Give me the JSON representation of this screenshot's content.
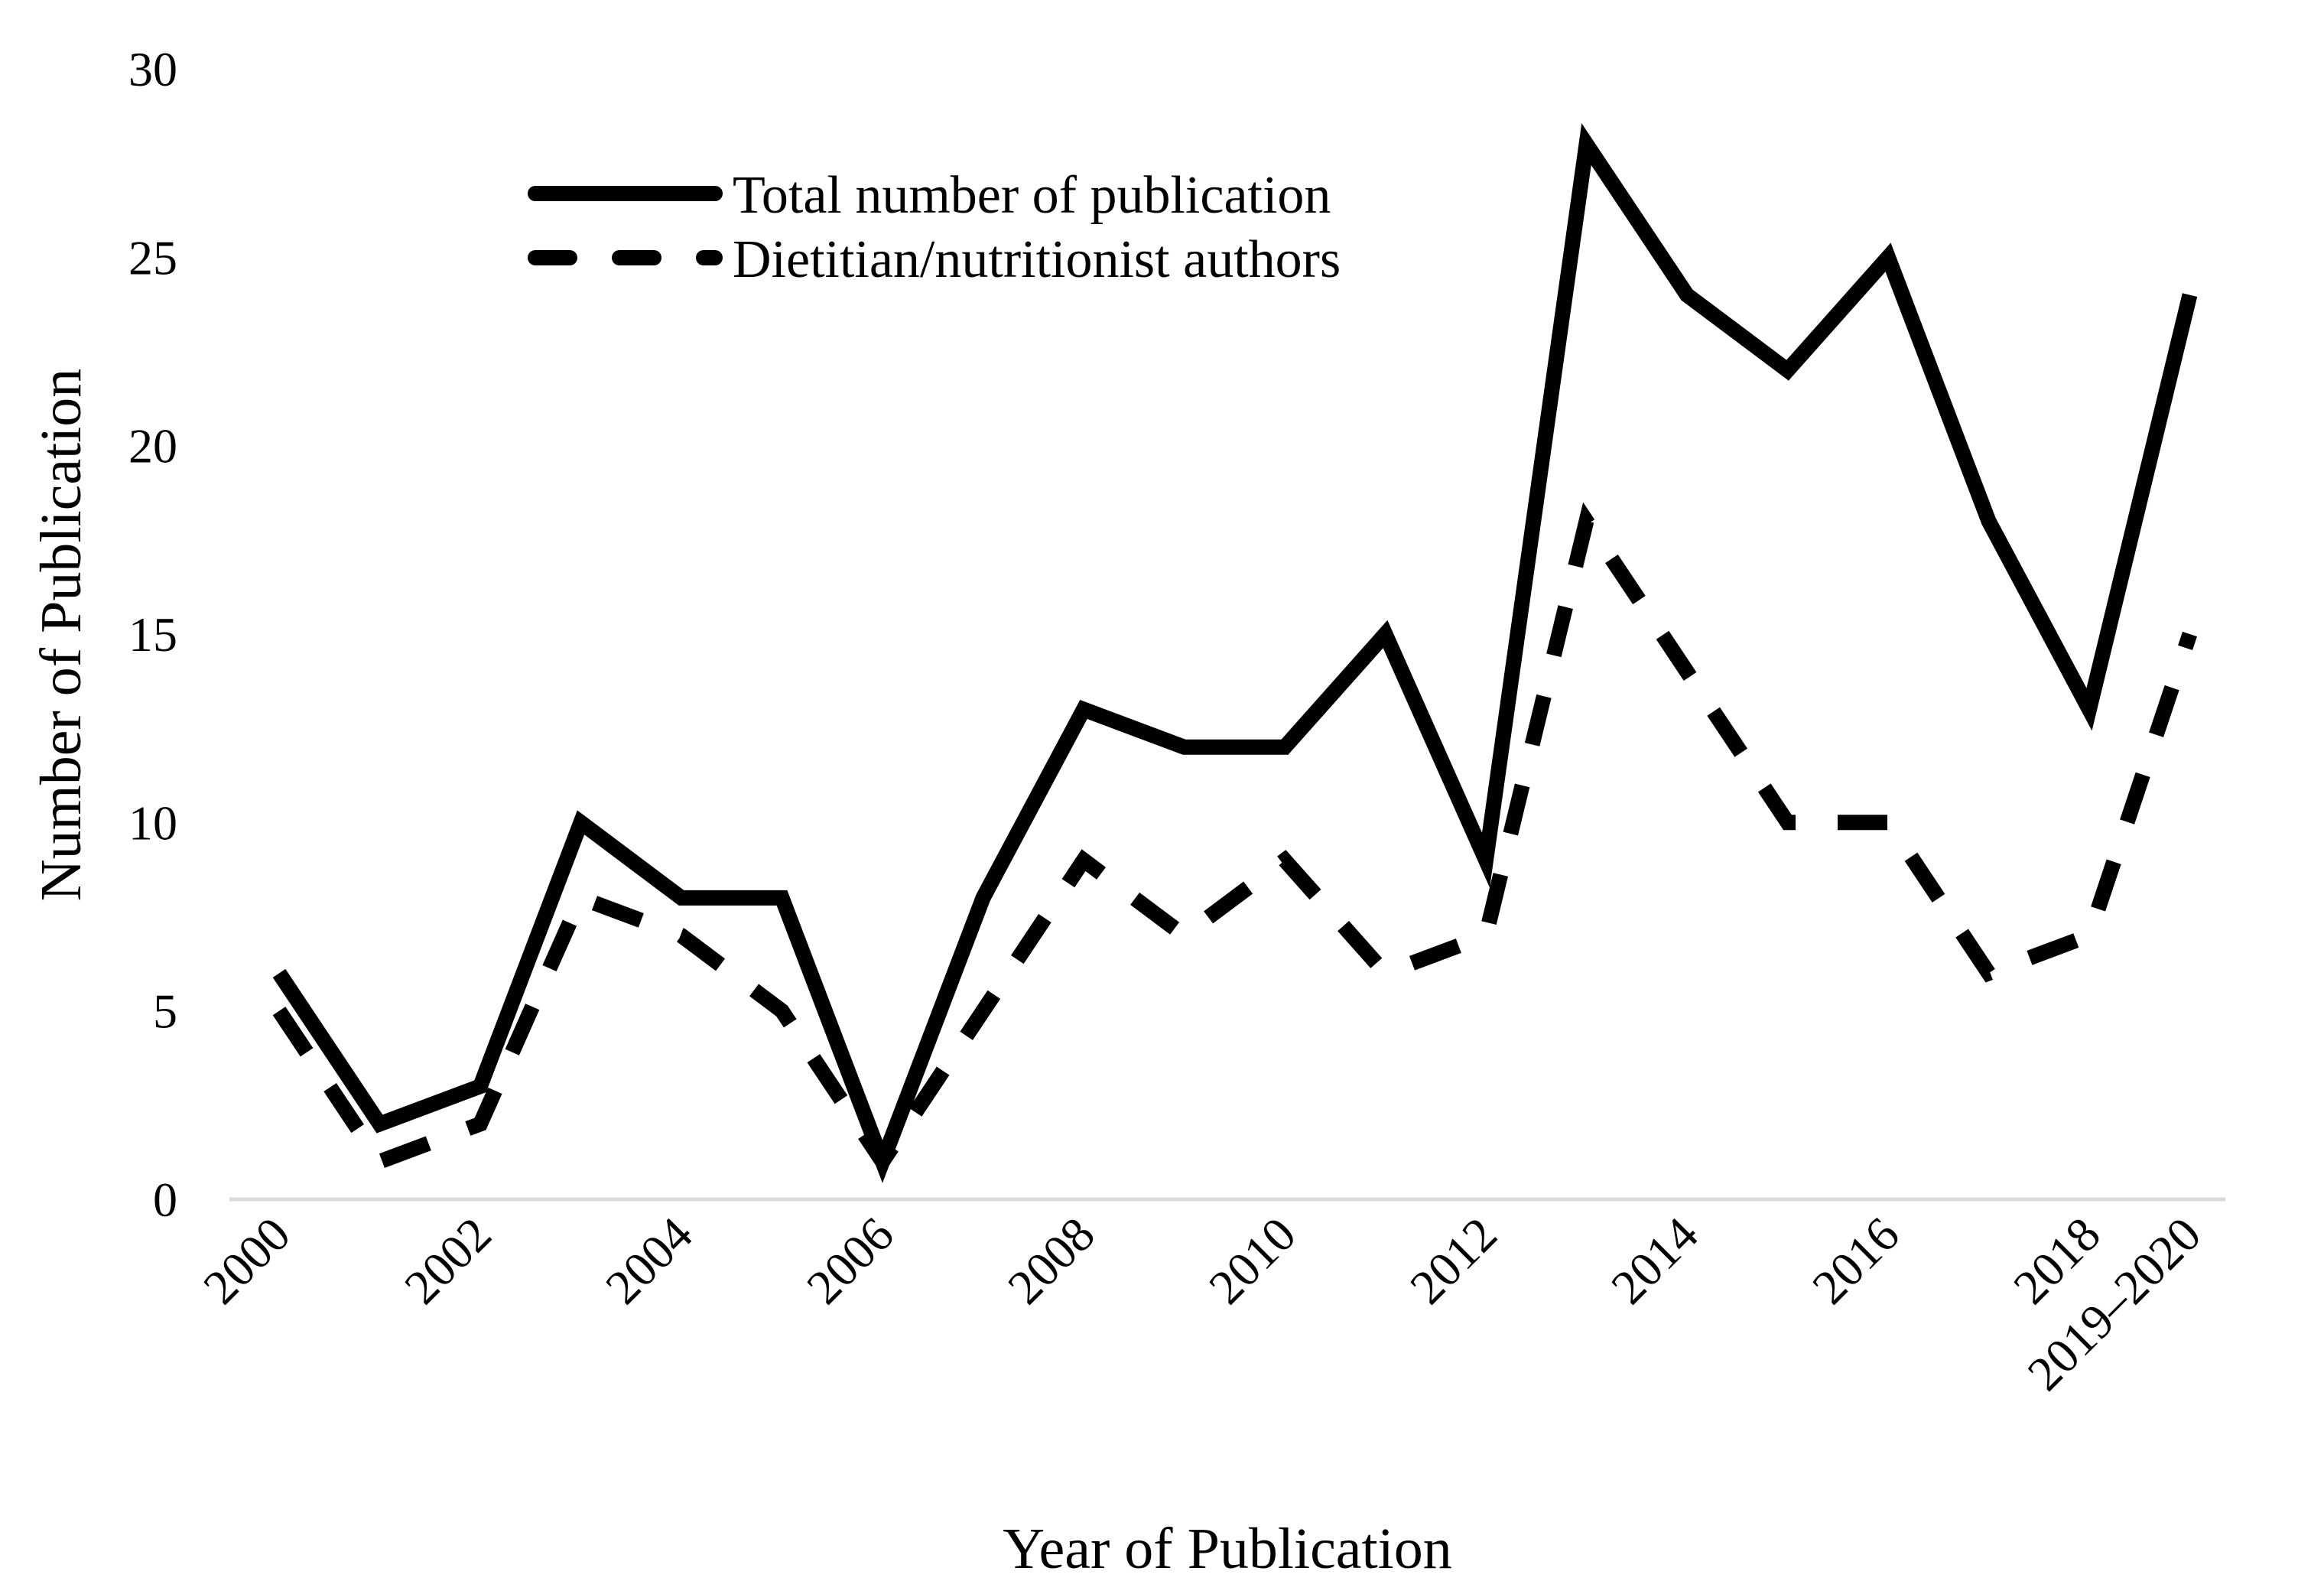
{
  "chart_data": {
    "type": "line",
    "title": "",
    "xlabel": "Year of Publication",
    "ylabel": "Number of Publication",
    "ylim": [
      0,
      30
    ],
    "yticks": [
      0,
      5,
      10,
      15,
      20,
      25,
      30
    ],
    "grid": false,
    "legend_position": "top-center",
    "categories": [
      "2000",
      "2001",
      "2002",
      "2003",
      "2004",
      "2005",
      "2006",
      "2007",
      "2008",
      "2009",
      "2010",
      "2011",
      "2012",
      "2013",
      "2014",
      "2015",
      "2016",
      "2017",
      "2018",
      "2019–2020"
    ],
    "x_tick_labels": [
      "2000",
      "",
      "2002",
      "",
      "2004",
      "",
      "2006",
      "",
      "2008",
      "",
      "2010",
      "",
      "2012",
      "",
      "2014",
      "",
      "2016",
      "",
      "2018",
      "2019–2020"
    ],
    "series": [
      {
        "name": "Total number of publication",
        "style": "solid",
        "color": "#000000",
        "values": [
          6,
          2,
          3,
          10,
          8,
          8,
          1,
          8,
          13,
          12,
          12,
          15,
          9,
          28,
          24,
          22,
          25,
          18,
          13,
          24
        ]
      },
      {
        "name": "Dietitian/nutritionist authors",
        "style": "dashed",
        "color": "#000000",
        "values": [
          5,
          1,
          2,
          8,
          7,
          5,
          1,
          5,
          9,
          7,
          9,
          6,
          7,
          18,
          14,
          10,
          10,
          6,
          7,
          15
        ]
      }
    ]
  }
}
